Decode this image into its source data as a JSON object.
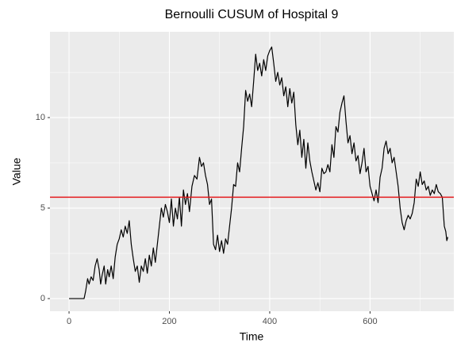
{
  "chart_data": {
    "type": "line",
    "title": "Bernoulli CUSUM of Hospital 9",
    "x_label": "Time",
    "y_label": "Value",
    "x": [
      0,
      30,
      33,
      37,
      40,
      44,
      48,
      52,
      56,
      60,
      63,
      66,
      70,
      73,
      77,
      80,
      84,
      88,
      92,
      96,
      100,
      104,
      108,
      112,
      116,
      120,
      124,
      128,
      132,
      136,
      140,
      144,
      148,
      152,
      156,
      160,
      164,
      168,
      172,
      176,
      180,
      184,
      188,
      192,
      196,
      200,
      204,
      208,
      212,
      216,
      220,
      224,
      228,
      232,
      236,
      240,
      245,
      250,
      255,
      260,
      264,
      268,
      272,
      276,
      280,
      284,
      288,
      292,
      296,
      300,
      304,
      308,
      312,
      316,
      320,
      324,
      328,
      332,
      336,
      340,
      344,
      348,
      352,
      356,
      360,
      364,
      368,
      372,
      376,
      380,
      384,
      388,
      392,
      396,
      400,
      404,
      408,
      412,
      416,
      420,
      424,
      428,
      432,
      436,
      440,
      444,
      448,
      452,
      456,
      460,
      464,
      468,
      472,
      476,
      480,
      484,
      488,
      492,
      496,
      500,
      504,
      508,
      512,
      516,
      520,
      524,
      528,
      532,
      536,
      540,
      544,
      548,
      552,
      556,
      560,
      564,
      568,
      572,
      576,
      580,
      584,
      588,
      592,
      596,
      600,
      604,
      608,
      612,
      616,
      620,
      624,
      628,
      632,
      636,
      640,
      644,
      648,
      652,
      656,
      660,
      664,
      668,
      672,
      676,
      680,
      684,
      688,
      692,
      696,
      700,
      704,
      708,
      712,
      716,
      720,
      724,
      728,
      732,
      736,
      740,
      744,
      748,
      751,
      753,
      755
    ],
    "values": [
      0,
      0,
      0.4,
      1.1,
      0.8,
      1.2,
      1.0,
      1.8,
      2.2,
      1.6,
      0.8,
      1.3,
      1.8,
      0.8,
      1.6,
      1.2,
      1.8,
      1.1,
      2.3,
      3.0,
      3.3,
      3.8,
      3.4,
      4.0,
      3.6,
      4.3,
      3.0,
      2.2,
      1.5,
      1.8,
      0.9,
      1.8,
      1.5,
      2.2,
      1.4,
      2.4,
      1.8,
      2.8,
      2.0,
      3.0,
      4.0,
      5.0,
      4.5,
      5.2,
      4.8,
      4.2,
      5.5,
      4.0,
      5.0,
      4.4,
      5.6,
      4.0,
      6.0,
      5.2,
      5.8,
      4.8,
      6.2,
      6.8,
      6.6,
      7.8,
      7.3,
      7.5,
      6.8,
      6.3,
      5.2,
      5.5,
      3.0,
      2.7,
      3.5,
      2.6,
      3.2,
      2.5,
      3.3,
      3.0,
      4.0,
      5.0,
      6.3,
      6.2,
      7.5,
      7.0,
      8.3,
      9.5,
      11.5,
      10.9,
      11.3,
      10.6,
      12.0,
      13.5,
      12.6,
      13.0,
      12.3,
      13.2,
      12.6,
      13.4,
      13.7,
      13.9,
      13.0,
      12.0,
      12.5,
      11.8,
      12.2,
      11.2,
      11.7,
      10.6,
      11.6,
      10.8,
      11.4,
      9.6,
      8.5,
      9.3,
      7.8,
      8.8,
      7.2,
      8.6,
      7.6,
      7.0,
      6.5,
      6.0,
      6.4,
      5.9,
      7.2,
      6.9,
      7.0,
      7.4,
      7.0,
      8.5,
      7.8,
      9.5,
      9.2,
      10.3,
      10.8,
      11.2,
      9.8,
      8.6,
      9.0,
      8.0,
      8.6,
      7.6,
      7.9,
      6.9,
      7.5,
      8.3,
      7.0,
      7.3,
      6.2,
      5.8,
      5.4,
      6.0,
      5.3,
      6.7,
      7.2,
      8.3,
      8.7,
      8.0,
      8.3,
      7.5,
      7.8,
      7.0,
      6.2,
      5.0,
      4.2,
      3.8,
      4.3,
      4.6,
      4.4,
      4.7,
      5.3,
      6.6,
      6.2,
      7.0,
      6.3,
      6.5,
      6.0,
      6.2,
      5.7,
      6.0,
      5.8,
      6.3,
      5.9,
      5.8,
      5.6,
      4.0,
      3.7,
      3.2,
      3.4
    ],
    "color": "#000000",
    "hline": 5.6,
    "hline_color": "#e41a1c",
    "xlim": [
      -38,
      767
    ],
    "ylim": [
      -0.7,
      14.74
    ],
    "xticks": [
      0,
      200,
      400,
      600
    ],
    "yticks": [
      0,
      5,
      10
    ],
    "x_minor_grid": [
      100,
      300,
      500,
      700
    ],
    "y_minor_grid": [
      2.5,
      7.5,
      12.5
    ],
    "grid": true
  }
}
